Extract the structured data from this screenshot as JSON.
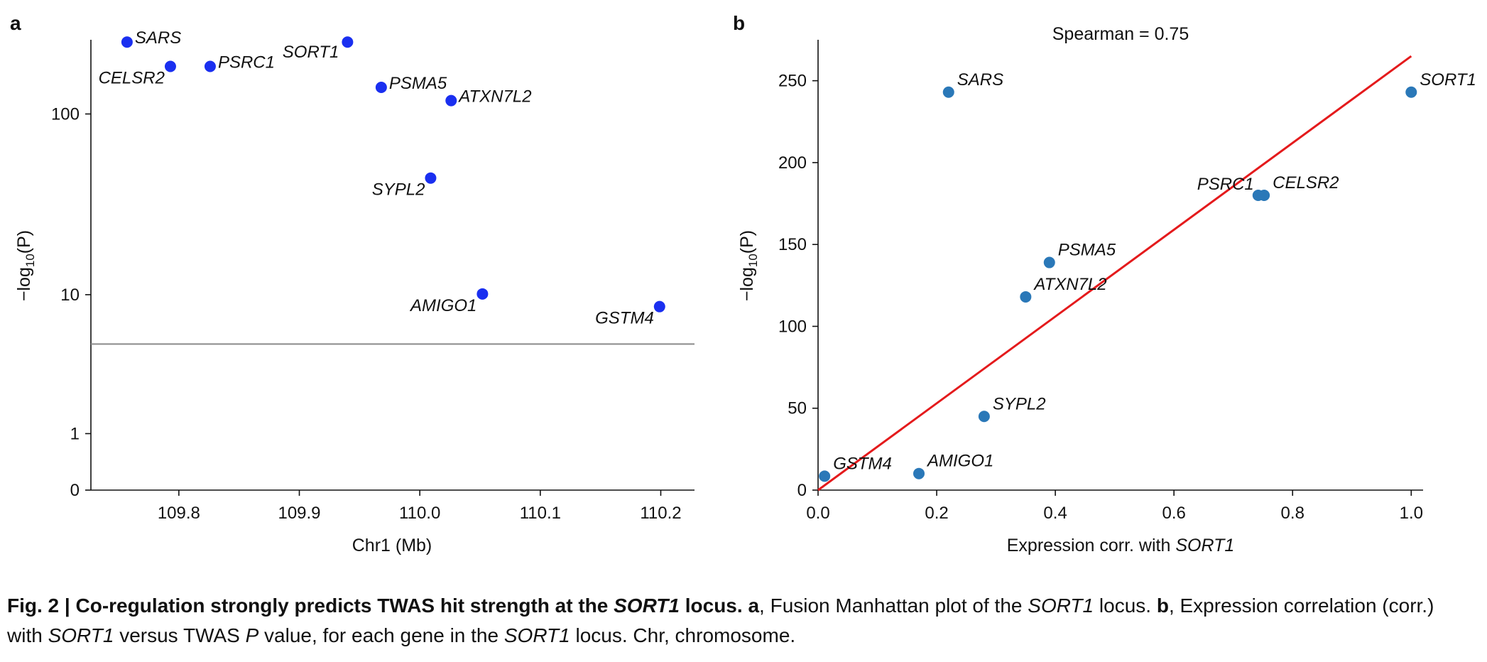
{
  "chart_data": [
    {
      "type": "scatter",
      "panel_label": "a",
      "xlabel": "Chr1 (Mb)",
      "ylabel_prefix": "−log",
      "ylabel_sub": "10",
      "ylabel_suffix": "(P)",
      "y_scale": "log",
      "xlim": [
        109.727,
        110.228
      ],
      "ylim": [
        0,
        250
      ],
      "xticks": [
        {
          "value": 109.8,
          "label": "109.8"
        },
        {
          "value": 109.9,
          "label": "109.9"
        },
        {
          "value": 110.0,
          "label": "110.0"
        },
        {
          "value": 110.1,
          "label": "110.1"
        },
        {
          "value": 110.2,
          "label": "110.2"
        }
      ],
      "yticks": [
        {
          "value": 0,
          "label": "0"
        },
        {
          "value": 1,
          "label": "1"
        },
        {
          "value": 10,
          "label": "10"
        },
        {
          "value": 100,
          "label": "100"
        }
      ],
      "threshold_y": 5.0,
      "grid": false,
      "color": "#1a2ff0",
      "threshold_color": "#8a8a8a",
      "points": [
        {
          "label": "SARS",
          "x": 109.757,
          "y": 243,
          "label_side": "right"
        },
        {
          "label": "CELSR2",
          "x": 109.793,
          "y": 180,
          "label_side": "below-left"
        },
        {
          "label": "PSRC1",
          "x": 109.826,
          "y": 180,
          "label_side": "right"
        },
        {
          "label": "SORT1",
          "x": 109.94,
          "y": 243,
          "label_side": "left"
        },
        {
          "label": "PSMA5",
          "x": 109.968,
          "y": 139,
          "label_side": "right"
        },
        {
          "label": "ATXN7L2",
          "x": 110.026,
          "y": 118,
          "label_side": "right"
        },
        {
          "label": "SYPL2",
          "x": 110.009,
          "y": 45,
          "label_side": "below-left"
        },
        {
          "label": "AMIGO1",
          "x": 110.052,
          "y": 10.1,
          "label_side": "below-left"
        },
        {
          "label": "GSTM4",
          "x": 110.199,
          "y": 8.5,
          "label_side": "below-left"
        }
      ]
    },
    {
      "type": "scatter",
      "panel_label": "b",
      "title": "Spearman = 0.75",
      "xlabel_prefix": "Expression corr. with ",
      "xlabel_gene": "SORT1",
      "ylabel_prefix": "−log",
      "ylabel_sub": "10",
      "ylabel_suffix": "(P)",
      "xlim": [
        0,
        1.02
      ],
      "ylim": [
        0,
        275
      ],
      "xticks": [
        {
          "value": 0.0,
          "label": "0.0"
        },
        {
          "value": 0.2,
          "label": "0.2"
        },
        {
          "value": 0.4,
          "label": "0.4"
        },
        {
          "value": 0.6,
          "label": "0.6"
        },
        {
          "value": 0.8,
          "label": "0.8"
        },
        {
          "value": 1.0,
          "label": "1.0"
        }
      ],
      "yticks": [
        {
          "value": 0,
          "label": "0"
        },
        {
          "value": 50,
          "label": "50"
        },
        {
          "value": 100,
          "label": "100"
        },
        {
          "value": 150,
          "label": "150"
        },
        {
          "value": 200,
          "label": "200"
        },
        {
          "value": 250,
          "label": "250"
        }
      ],
      "grid": false,
      "color": "#2a78b8",
      "fit_color": "#e41a1c",
      "fit_line": {
        "x": [
          0,
          1.0
        ],
        "y": [
          0,
          265
        ]
      },
      "points": [
        {
          "label": "SARS",
          "x": 0.22,
          "y": 243,
          "label_side": "right"
        },
        {
          "label": "SORT1",
          "x": 1.0,
          "y": 243,
          "label_side": "right"
        },
        {
          "label": "PSRC1",
          "x": 0.742,
          "y": 180,
          "label_side": "left"
        },
        {
          "label": "CELSR2",
          "x": 0.752,
          "y": 180,
          "label_side": "right"
        },
        {
          "label": "PSMA5",
          "x": 0.39,
          "y": 139,
          "label_side": "right"
        },
        {
          "label": "ATXN7L2",
          "x": 0.35,
          "y": 118,
          "label_side": "right"
        },
        {
          "label": "SYPL2",
          "x": 0.28,
          "y": 45,
          "label_side": "right"
        },
        {
          "label": "AMIGO1",
          "x": 0.17,
          "y": 10.1,
          "label_side": "right"
        },
        {
          "label": "GSTM4",
          "x": 0.011,
          "y": 8.5,
          "label_side": "right"
        }
      ]
    }
  ],
  "caption": {
    "fig_label": "Fig. 2 | ",
    "title_part1": "Co-regulation strongly predicts TWAS hit strength at the ",
    "title_gene": "SORT1",
    "title_part2": " locus.",
    "a_label": "a",
    "a_text1": ", Fusion Manhattan plot of the ",
    "a_gene": "SORT1",
    "a_text2": " locus. ",
    "b_label": "b",
    "b_text1": ", Expression correlation (corr.) with ",
    "b_gene": "SORT1",
    "b_text2": " versus TWAS ",
    "b_p": "P",
    "b_text3": " value, for each gene in the ",
    "b_gene2": "SORT1",
    "b_text4": " locus. Chr, chromosome."
  }
}
